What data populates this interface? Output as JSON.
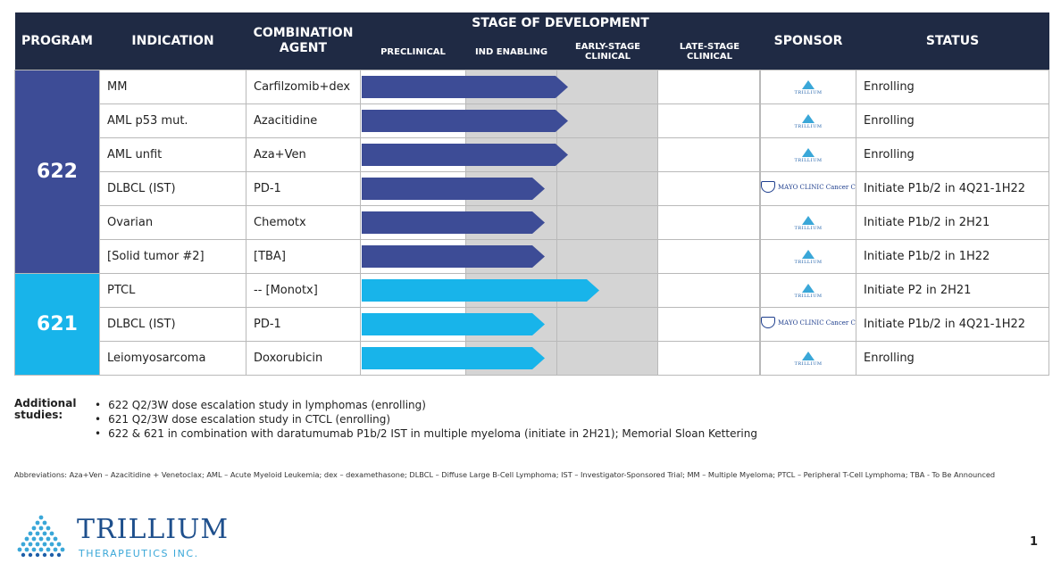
{
  "header": {
    "program": "PROGRAM",
    "indication": "INDICATION",
    "combination": "COMBINATION AGENT",
    "stage_group": "STAGE OF DEVELOPMENT",
    "stages": [
      "PRECLINICAL",
      "IND ENABLING",
      "EARLY-STAGE CLINICAL",
      "LATE-STAGE CLINICAL"
    ],
    "sponsor": "SPONSOR",
    "status": "STATUS"
  },
  "programs": [
    {
      "name": "622",
      "color": "#3d4c96",
      "rows": [
        {
          "indication": "MM",
          "combination": "Carfilzomib+dex",
          "sponsor": "TRILLIUM",
          "status": "Enrolling",
          "progress": 2.1
        },
        {
          "indication": "AML p53 mut.",
          "combination": "Azacitidine",
          "sponsor": "TRILLIUM",
          "status": "Enrolling",
          "progress": 2.1
        },
        {
          "indication": "AML unfit",
          "combination": "Aza+Ven",
          "sponsor": "TRILLIUM",
          "status": "Enrolling",
          "progress": 2.1
        },
        {
          "indication": "DLBCL (IST)",
          "combination": "PD-1",
          "sponsor": "MAYO CLINIC Cancer Center",
          "status": "Initiate P1b/2 in 4Q21-1H22",
          "progress": 1.85
        },
        {
          "indication": "Ovarian",
          "combination": "Chemotx",
          "sponsor": "TRILLIUM",
          "status": "Initiate P1b/2 in 2H21",
          "progress": 1.85
        },
        {
          "indication": "[Solid tumor #2]",
          "combination": "[TBA]",
          "sponsor": "TRILLIUM",
          "status": "Initiate P1b/2 in 1H22",
          "progress": 1.85
        }
      ]
    },
    {
      "name": "621",
      "color": "#18b4ea",
      "rows": [
        {
          "indication": "PTCL",
          "combination": "-- [Monotx]",
          "sponsor": "TRILLIUM",
          "status": "Initiate P2 in 2H21",
          "progress": 2.4
        },
        {
          "indication": "DLBCL (IST)",
          "combination": "PD-1",
          "sponsor": "MAYO CLINIC Cancer Center",
          "status": "Initiate P1b/2 in 4Q21-1H22",
          "progress": 1.85
        },
        {
          "indication": "Leiomyosarcoma",
          "combination": "Doxorubicin",
          "sponsor": "TRILLIUM",
          "status": "Enrolling",
          "progress": 1.85
        }
      ]
    }
  ],
  "notes": {
    "label": "Additional studies:",
    "items": [
      "622 Q2/3W dose escalation study in lymphomas (enrolling)",
      "621 Q2/3W dose escalation study in CTCL (enrolling)",
      "622 & 621 in combination with daratumumab P1b/2 IST in multiple myeloma (initiate in 2H21); Memorial Sloan Kettering"
    ]
  },
  "abbreviations": "Abbreviations: Aza+Ven – Azacitidine + Venetoclax; AML – Acute Myeloid Leukemia; dex – dexamethasone; DLBCL – Diffuse Large B-Cell Lymphoma; IST – Investigator-Sponsored Trial; MM – Multiple Myeloma; PTCL – Peripheral T-Cell Lymphoma; TBA - To Be Announced",
  "footer": {
    "brand": "TRILLIUM",
    "tagline": "THERAPEUTICS INC.",
    "page_number": "1"
  }
}
